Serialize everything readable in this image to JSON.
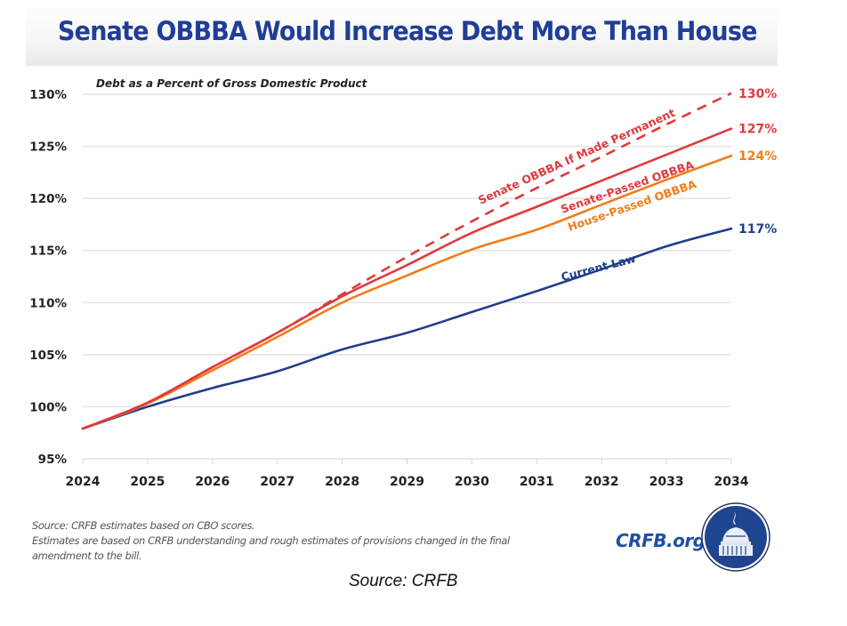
{
  "header": {
    "title": "Senate OBBBA Would Increase Debt More Than House"
  },
  "chart_data": {
    "type": "line",
    "title": "Senate OBBBA Would Increase Debt More Than House",
    "subtitle": "Debt as a Percent of Gross Domestic Product",
    "xlabel": "",
    "ylabel": "",
    "x": [
      2024,
      2025,
      2026,
      2027,
      2028,
      2029,
      2030,
      2031,
      2032,
      2033,
      2034
    ],
    "x_tick_labels": [
      "2024",
      "2025",
      "2026",
      "2027",
      "2028",
      "2029",
      "2030",
      "2031",
      "2032",
      "2033",
      "2034"
    ],
    "ylim": [
      95,
      130
    ],
    "y_ticks": [
      95,
      100,
      105,
      110,
      115,
      120,
      125,
      130
    ],
    "y_tick_labels": [
      "95%",
      "100%",
      "105%",
      "110%",
      "115%",
      "120%",
      "125%",
      "130%"
    ],
    "grid": true,
    "legend": "inline labels on lines",
    "series": [
      {
        "name": "Senate OBBBA If Made Permanent",
        "color": "#e03a3e",
        "style": "dashed",
        "values": [
          97.9,
          100.4,
          103.8,
          107.1,
          110.8,
          114.4,
          117.8,
          121.0,
          124.0,
          127.1,
          130.1
        ],
        "end_label": "130%"
      },
      {
        "name": "Senate-Passed OBBBA",
        "color": "#e03a3e",
        "style": "solid",
        "values": [
          97.9,
          100.4,
          103.8,
          107.1,
          110.6,
          113.6,
          116.7,
          119.2,
          121.7,
          124.2,
          126.7
        ],
        "end_label": "127%"
      },
      {
        "name": "House-Passed OBBBA",
        "color": "#f07d1a",
        "style": "solid",
        "values": [
          97.9,
          100.3,
          103.5,
          106.7,
          110.0,
          112.6,
          115.1,
          117.0,
          119.4,
          121.8,
          124.1
        ],
        "end_label": "124%"
      },
      {
        "name": "Current Law",
        "color": "#1f3e8a",
        "style": "solid",
        "values": [
          97.9,
          100.0,
          101.8,
          103.4,
          105.5,
          107.1,
          109.1,
          111.1,
          113.2,
          115.4,
          117.1
        ],
        "end_label": "117%"
      }
    ]
  },
  "footer": {
    "notes": [
      "Source: CRFB estimates based on CBO scores.",
      "Estimates are based on CRFB understanding and rough estimates of provisions changed in the final",
      "amendment to the bill."
    ],
    "brand": "CRFB.org",
    "logo_icon": "capitol-dome-icon",
    "caption": "Source: CRFB"
  }
}
